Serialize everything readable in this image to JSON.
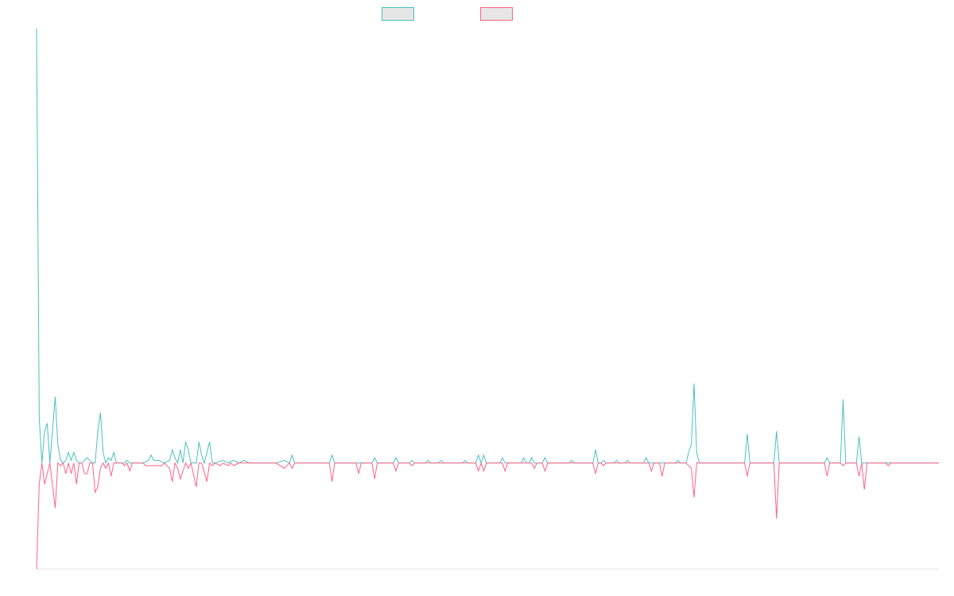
{
  "chart_data": {
    "type": "line",
    "title": "",
    "xlabel": "",
    "ylabel": "",
    "x_count": 340,
    "ylim": [
      -2.0,
      8.2
    ],
    "baseline": 0,
    "grid": false,
    "legend_position": "top-center",
    "colors": {
      "series_a": "#4bc0c0",
      "series_b": "#ff6384",
      "legend_fill": "#e6e6e6",
      "axis": "#e3e3e3"
    },
    "series": [
      {
        "color": "#4bc0c0",
        "points": [
          [
            0,
            8.2
          ],
          [
            1,
            0.85
          ],
          [
            2,
            0.0
          ],
          [
            3,
            0.6
          ],
          [
            4,
            0.75
          ],
          [
            5,
            0.0
          ],
          [
            7,
            1.25
          ],
          [
            8,
            0.35
          ],
          [
            9,
            0.05
          ],
          [
            10,
            0.0
          ],
          [
            11,
            0.05
          ],
          [
            12,
            0.2
          ],
          [
            13,
            0.05
          ],
          [
            14,
            0.2
          ],
          [
            15,
            0.05
          ],
          [
            16,
            0.0
          ],
          [
            17,
            0.0
          ],
          [
            18,
            0.05
          ],
          [
            19,
            0.1
          ],
          [
            20,
            0.05
          ],
          [
            21,
            0.0
          ],
          [
            22,
            0.0
          ],
          [
            23,
            0.6
          ],
          [
            24,
            0.95
          ],
          [
            25,
            0.2
          ],
          [
            26,
            0.0
          ],
          [
            27,
            0.1
          ],
          [
            28,
            0.05
          ],
          [
            29,
            0.2
          ],
          [
            30,
            0.0
          ],
          [
            31,
            0.0
          ],
          [
            32,
            0.0
          ],
          [
            33,
            0.0
          ],
          [
            34,
            0.05
          ],
          [
            35,
            0.0
          ],
          [
            36,
            0.0
          ],
          [
            40,
            0.0
          ],
          [
            42,
            0.05
          ],
          [
            43,
            0.15
          ],
          [
            44,
            0.05
          ],
          [
            46,
            0.05
          ],
          [
            48,
            0.0
          ],
          [
            50,
            0.05
          ],
          [
            51,
            0.25
          ],
          [
            52,
            0.1
          ],
          [
            53,
            0.0
          ],
          [
            54,
            0.25
          ],
          [
            55,
            0.0
          ],
          [
            56,
            0.4
          ],
          [
            57,
            0.25
          ],
          [
            58,
            0.0
          ],
          [
            60,
            0.0
          ],
          [
            61,
            0.4
          ],
          [
            62,
            0.15
          ],
          [
            63,
            0.0
          ],
          [
            65,
            0.4
          ],
          [
            66,
            0.0
          ],
          [
            67,
            0.0
          ],
          [
            70,
            0.05
          ],
          [
            72,
            0.0
          ],
          [
            74,
            0.05
          ],
          [
            76,
            0.0
          ],
          [
            78,
            0.05
          ],
          [
            80,
            0.0
          ],
          [
            90,
            0.0
          ],
          [
            93,
            0.05
          ],
          [
            95,
            0.0
          ],
          [
            96,
            0.15
          ],
          [
            97,
            0.0
          ],
          [
            100,
            0.0
          ],
          [
            110,
            0.0
          ],
          [
            111,
            0.15
          ],
          [
            112,
            0.0
          ],
          [
            114,
            0.0
          ],
          [
            126,
            0.0
          ],
          [
            127,
            0.1
          ],
          [
            128,
            0.0
          ],
          [
            134,
            0.0
          ],
          [
            135,
            0.1
          ],
          [
            136,
            0.0
          ],
          [
            140,
            0.0
          ],
          [
            141,
            0.05
          ],
          [
            142,
            0.0
          ],
          [
            146,
            0.0
          ],
          [
            147,
            0.05
          ],
          [
            148,
            0.0
          ],
          [
            151,
            0.0
          ],
          [
            152,
            0.05
          ],
          [
            153,
            0.0
          ],
          [
            160,
            0.0
          ],
          [
            161,
            0.05
          ],
          [
            162,
            0.0
          ],
          [
            165,
            0.0
          ],
          [
            166,
            0.15
          ],
          [
            167,
            0.0
          ],
          [
            168,
            0.15
          ],
          [
            169,
            0.0
          ],
          [
            174,
            0.0
          ],
          [
            175,
            0.1
          ],
          [
            176,
            0.0
          ],
          [
            182,
            0.0
          ],
          [
            183,
            0.1
          ],
          [
            184,
            0.0
          ],
          [
            185,
            0.0
          ],
          [
            186,
            0.1
          ],
          [
            187,
            0.0
          ],
          [
            190,
            0.0
          ],
          [
            191,
            0.1
          ],
          [
            192,
            0.0
          ],
          [
            200,
            0.0
          ],
          [
            201,
            0.05
          ],
          [
            202,
            0.0
          ],
          [
            209,
            0.0
          ],
          [
            210,
            0.25
          ],
          [
            211,
            0.0
          ],
          [
            212,
            0.0
          ],
          [
            213,
            0.05
          ],
          [
            214,
            0.0
          ],
          [
            217,
            0.0
          ],
          [
            218,
            0.05
          ],
          [
            219,
            0.0
          ],
          [
            221,
            0.0
          ],
          [
            222,
            0.05
          ],
          [
            223,
            0.0
          ],
          [
            228,
            0.0
          ],
          [
            229,
            0.1
          ],
          [
            230,
            0.0
          ],
          [
            232,
            0.0
          ],
          [
            240,
            0.0
          ],
          [
            241,
            0.05
          ],
          [
            242,
            0.0
          ],
          [
            244,
            0.0
          ],
          [
            245,
            0.2
          ],
          [
            246,
            0.35
          ],
          [
            247,
            1.5
          ],
          [
            248,
            0.2
          ],
          [
            249,
            0.0
          ],
          [
            260,
            0.0
          ],
          [
            266,
            0.0
          ],
          [
            267,
            0.55
          ],
          [
            268,
            0.0
          ],
          [
            277,
            0.0
          ],
          [
            278,
            0.6
          ],
          [
            279,
            0.0
          ],
          [
            296,
            0.0
          ],
          [
            297,
            0.1
          ],
          [
            298,
            0.0
          ],
          [
            302,
            0.0
          ],
          [
            303,
            1.2
          ],
          [
            304,
            0.0
          ],
          [
            308,
            0.0
          ],
          [
            309,
            0.5
          ],
          [
            310,
            0.0
          ],
          [
            312,
            0.0
          ],
          [
            320,
            0.0
          ],
          [
            339,
            0.0
          ]
        ]
      },
      {
        "color": "#ff6384",
        "points": [
          [
            0,
            -2.0
          ],
          [
            1,
            -0.4
          ],
          [
            2,
            0.0
          ],
          [
            3,
            -0.4
          ],
          [
            4,
            -0.2
          ],
          [
            5,
            0.0
          ],
          [
            7,
            -0.85
          ],
          [
            8,
            0.0
          ],
          [
            9,
            -0.05
          ],
          [
            10,
            0.0
          ],
          [
            11,
            -0.2
          ],
          [
            12,
            0.0
          ],
          [
            13,
            -0.2
          ],
          [
            14,
            0.0
          ],
          [
            15,
            -0.4
          ],
          [
            16,
            0.0
          ],
          [
            17,
            0.0
          ],
          [
            18,
            -0.2
          ],
          [
            19,
            -0.2
          ],
          [
            20,
            0.0
          ],
          [
            21,
            0.0
          ],
          [
            22,
            -0.55
          ],
          [
            23,
            -0.45
          ],
          [
            24,
            -0.1
          ],
          [
            25,
            0.0
          ],
          [
            26,
            -0.1
          ],
          [
            27,
            0.0
          ],
          [
            28,
            -0.25
          ],
          [
            29,
            0.0
          ],
          [
            30,
            0.0
          ],
          [
            31,
            0.0
          ],
          [
            32,
            0.0
          ],
          [
            33,
            -0.05
          ],
          [
            34,
            0.0
          ],
          [
            35,
            -0.15
          ],
          [
            36,
            0.0
          ],
          [
            40,
            0.0
          ],
          [
            41,
            -0.05
          ],
          [
            43,
            -0.05
          ],
          [
            45,
            -0.05
          ],
          [
            47,
            -0.05
          ],
          [
            48,
            0.0
          ],
          [
            50,
            -0.1
          ],
          [
            51,
            -0.35
          ],
          [
            52,
            0.0
          ],
          [
            53,
            -0.1
          ],
          [
            54,
            -0.3
          ],
          [
            55,
            -0.15
          ],
          [
            56,
            0.0
          ],
          [
            57,
            -0.1
          ],
          [
            58,
            0.0
          ],
          [
            60,
            -0.45
          ],
          [
            61,
            0.0
          ],
          [
            62,
            0.0
          ],
          [
            64,
            -0.35
          ],
          [
            65,
            0.0
          ],
          [
            66,
            -0.05
          ],
          [
            67,
            0.0
          ],
          [
            69,
            -0.05
          ],
          [
            70,
            0.0
          ],
          [
            72,
            -0.05
          ],
          [
            73,
            0.0
          ],
          [
            74,
            -0.05
          ],
          [
            76,
            0.0
          ],
          [
            90,
            0.0
          ],
          [
            93,
            -0.1
          ],
          [
            95,
            0.0
          ],
          [
            96,
            -0.1
          ],
          [
            97,
            0.0
          ],
          [
            110,
            0.0
          ],
          [
            111,
            -0.35
          ],
          [
            112,
            0.0
          ],
          [
            120,
            0.0
          ],
          [
            121,
            -0.2
          ],
          [
            122,
            0.0
          ],
          [
            126,
            0.0
          ],
          [
            127,
            -0.3
          ],
          [
            128,
            0.0
          ],
          [
            134,
            0.0
          ],
          [
            135,
            -0.15
          ],
          [
            136,
            0.0
          ],
          [
            140,
            0.0
          ],
          [
            141,
            -0.05
          ],
          [
            142,
            0.0
          ],
          [
            165,
            0.0
          ],
          [
            166,
            -0.15
          ],
          [
            167,
            0.0
          ],
          [
            168,
            -0.15
          ],
          [
            169,
            0.0
          ],
          [
            175,
            0.0
          ],
          [
            176,
            -0.15
          ],
          [
            177,
            0.0
          ],
          [
            186,
            0.0
          ],
          [
            187,
            -0.1
          ],
          [
            188,
            0.0
          ],
          [
            190,
            0.0
          ],
          [
            191,
            -0.15
          ],
          [
            192,
            0.0
          ],
          [
            209,
            0.0
          ],
          [
            210,
            -0.2
          ],
          [
            211,
            0.0
          ],
          [
            212,
            0.0
          ],
          [
            213,
            -0.05
          ],
          [
            214,
            0.0
          ],
          [
            230,
            0.0
          ],
          [
            231,
            -0.15
          ],
          [
            232,
            0.0
          ],
          [
            234,
            0.0
          ],
          [
            235,
            -0.25
          ],
          [
            236,
            0.0
          ],
          [
            244,
            0.0
          ],
          [
            245,
            -0.05
          ],
          [
            246,
            -0.1
          ],
          [
            247,
            -0.65
          ],
          [
            248,
            0.0
          ],
          [
            260,
            0.0
          ],
          [
            266,
            0.0
          ],
          [
            267,
            -0.25
          ],
          [
            268,
            0.0
          ],
          [
            277,
            0.0
          ],
          [
            278,
            -1.05
          ],
          [
            279,
            0.0
          ],
          [
            296,
            0.0
          ],
          [
            297,
            -0.25
          ],
          [
            298,
            0.0
          ],
          [
            302,
            0.0
          ],
          [
            303,
            -0.05
          ],
          [
            304,
            0.0
          ],
          [
            308,
            0.0
          ],
          [
            309,
            -0.25
          ],
          [
            310,
            0.0
          ],
          [
            311,
            -0.5
          ],
          [
            312,
            0.0
          ],
          [
            319,
            0.0
          ],
          [
            320,
            -0.05
          ],
          [
            321,
            0.0
          ],
          [
            339,
            0.0
          ]
        ]
      }
    ]
  }
}
